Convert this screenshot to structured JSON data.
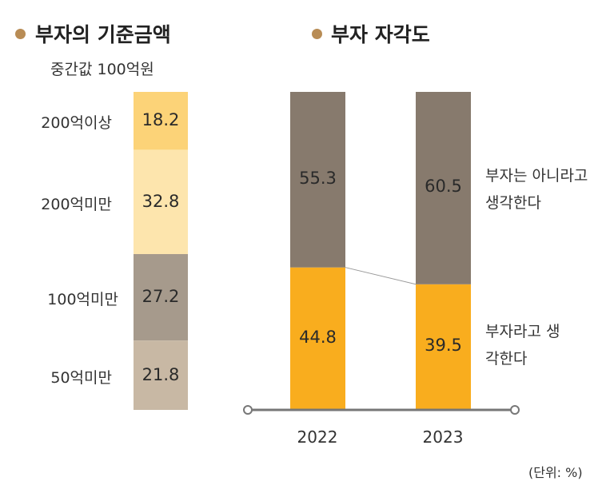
{
  "chart_data": [
    {
      "type": "bar",
      "stacked": true,
      "title": "부자의 기준금액",
      "subtitle": "중간값 100억원",
      "categories": [
        "200억이상",
        "200억미만",
        "100억미만",
        "50억미만"
      ],
      "values": [
        18.2,
        32.8,
        27.2,
        21.8
      ],
      "colors": [
        "#fcd378",
        "#fde5ad",
        "#a69a8c",
        "#c8b8a4"
      ]
    },
    {
      "type": "bar",
      "stacked": true,
      "title": "부자 자각도",
      "categories": [
        "2022",
        "2023"
      ],
      "series": [
        {
          "name": "부자라고 생각한다",
          "values": [
            44.8,
            39.5
          ],
          "color": "#f9ad1e"
        },
        {
          "name": "부자는 아니라고 생각한다",
          "values": [
            55.3,
            60.5
          ],
          "color": "#877a6d"
        }
      ],
      "ylim": [
        0,
        100
      ],
      "unit": "(단위: %)"
    }
  ],
  "accent_color": "#b88c55"
}
